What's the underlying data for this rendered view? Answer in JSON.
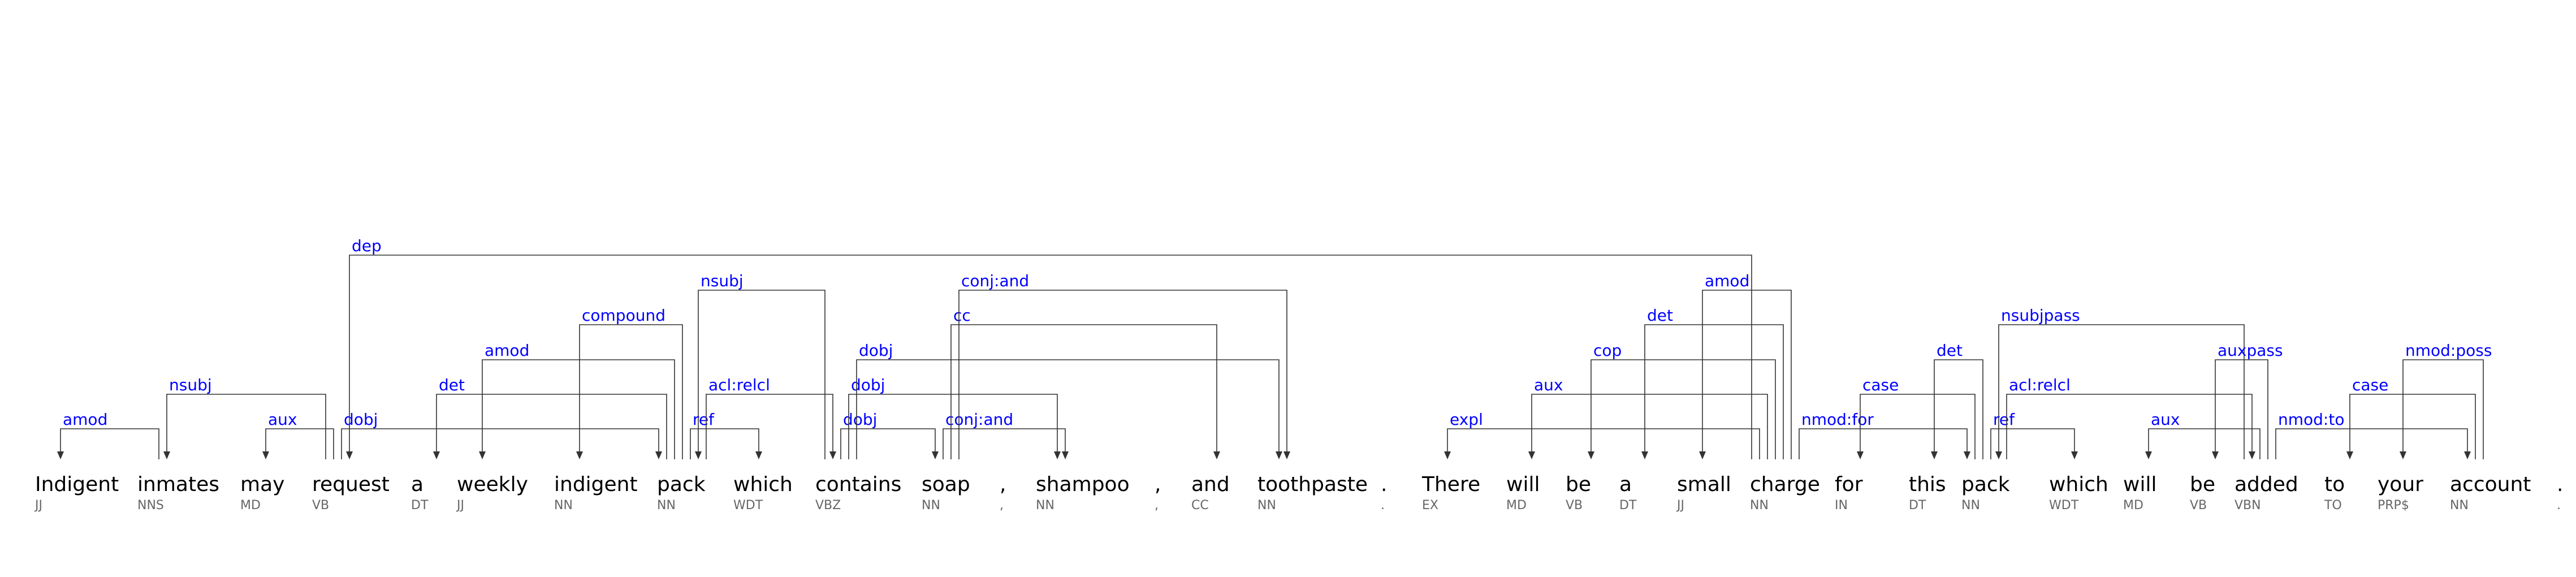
{
  "tokens": [
    {
      "word": "Indigent",
      "tag": "JJ"
    },
    {
      "word": "inmates",
      "tag": "NNS"
    },
    {
      "word": "may",
      "tag": "MD"
    },
    {
      "word": "request",
      "tag": "VB"
    },
    {
      "word": "a",
      "tag": "DT"
    },
    {
      "word": "weekly",
      "tag": "JJ"
    },
    {
      "word": "indigent",
      "tag": "NN"
    },
    {
      "word": "pack",
      "tag": "NN"
    },
    {
      "word": "which",
      "tag": "WDT"
    },
    {
      "word": "contains",
      "tag": "VBZ"
    },
    {
      "word": "soap",
      "tag": "NN"
    },
    {
      "word": ",",
      "tag": ","
    },
    {
      "word": "shampoo",
      "tag": "NN"
    },
    {
      "word": ",",
      "tag": ","
    },
    {
      "word": "and",
      "tag": "CC"
    },
    {
      "word": "toothpaste",
      "tag": "NN"
    },
    {
      "word": ".",
      "tag": "."
    },
    {
      "word": "There",
      "tag": "EX"
    },
    {
      "word": "will",
      "tag": "MD"
    },
    {
      "word": "be",
      "tag": "VB"
    },
    {
      "word": "a",
      "tag": "DT"
    },
    {
      "word": "small",
      "tag": "JJ"
    },
    {
      "word": "charge",
      "tag": "NN"
    },
    {
      "word": "for",
      "tag": "IN"
    },
    {
      "word": "this",
      "tag": "DT"
    },
    {
      "word": "pack",
      "tag": "NN"
    },
    {
      "word": "which",
      "tag": "WDT"
    },
    {
      "word": "will",
      "tag": "MD"
    },
    {
      "word": "be",
      "tag": "VB"
    },
    {
      "word": "added",
      "tag": "VBN"
    },
    {
      "word": "to",
      "tag": "TO"
    },
    {
      "word": "your",
      "tag": "PRP$"
    },
    {
      "word": "account",
      "tag": "NN"
    },
    {
      "word": ".",
      "tag": "."
    }
  ],
  "arcs": [
    {
      "label": "amod",
      "from": 1,
      "to": 0,
      "level": 1
    },
    {
      "label": "nsubj",
      "from": 3,
      "to": 1,
      "level": 3
    },
    {
      "label": "aux",
      "from": 3,
      "to": 2,
      "level": 1
    },
    {
      "label": "dobj",
      "from": 3,
      "to": 7,
      "level": 1
    },
    {
      "label": "det",
      "from": 7,
      "to": 4,
      "level": 3
    },
    {
      "label": "amod",
      "from": 7,
      "to": 5,
      "level": 4
    },
    {
      "label": "compound",
      "from": 7,
      "to": 6,
      "level": 5
    },
    {
      "label": "nsubj",
      "from": 9,
      "to": 7,
      "level": 6
    },
    {
      "label": "ref",
      "from": 7,
      "to": 8,
      "level": 1
    },
    {
      "label": "acl:relcl",
      "from": 7,
      "to": 9,
      "level": 3
    },
    {
      "label": "dobj",
      "from": 9,
      "to": 10,
      "level": 1
    },
    {
      "label": "dobj",
      "from": 9,
      "to": 12,
      "level": 3
    },
    {
      "label": "dobj",
      "from": 9,
      "to": 15,
      "level": 4
    },
    {
      "label": "conj:and",
      "from": 10,
      "to": 12,
      "level": 1
    },
    {
      "label": "cc",
      "from": 10,
      "to": 14,
      "level": 5
    },
    {
      "label": "conj:and",
      "from": 10,
      "to": 15,
      "level": 6
    },
    {
      "label": "dep",
      "from": 22,
      "to": 3,
      "level": 7
    },
    {
      "label": "expl",
      "from": 22,
      "to": 17,
      "level": 1
    },
    {
      "label": "aux",
      "from": 22,
      "to": 18,
      "level": 3
    },
    {
      "label": "cop",
      "from": 22,
      "to": 19,
      "level": 4
    },
    {
      "label": "det",
      "from": 22,
      "to": 20,
      "level": 5
    },
    {
      "label": "amod",
      "from": 22,
      "to": 21,
      "level": 6
    },
    {
      "label": "nmod:for",
      "from": 22,
      "to": 25,
      "level": 1
    },
    {
      "label": "case",
      "from": 25,
      "to": 23,
      "level": 3
    },
    {
      "label": "det",
      "from": 25,
      "to": 24,
      "level": 4
    },
    {
      "label": "nsubjpass",
      "from": 29,
      "to": 25,
      "level": 5
    },
    {
      "label": "ref",
      "from": 25,
      "to": 26,
      "level": 1
    },
    {
      "label": "acl:relcl",
      "from": 25,
      "to": 29,
      "level": 3
    },
    {
      "label": "aux",
      "from": 29,
      "to": 27,
      "level": 1
    },
    {
      "label": "auxpass",
      "from": 29,
      "to": 28,
      "level": 4
    },
    {
      "label": "nmod:to",
      "from": 29,
      "to": 32,
      "level": 1
    },
    {
      "label": "case",
      "from": 32,
      "to": 30,
      "level": 3
    },
    {
      "label": "nmod:poss",
      "from": 32,
      "to": 31,
      "level": 4
    }
  ]
}
